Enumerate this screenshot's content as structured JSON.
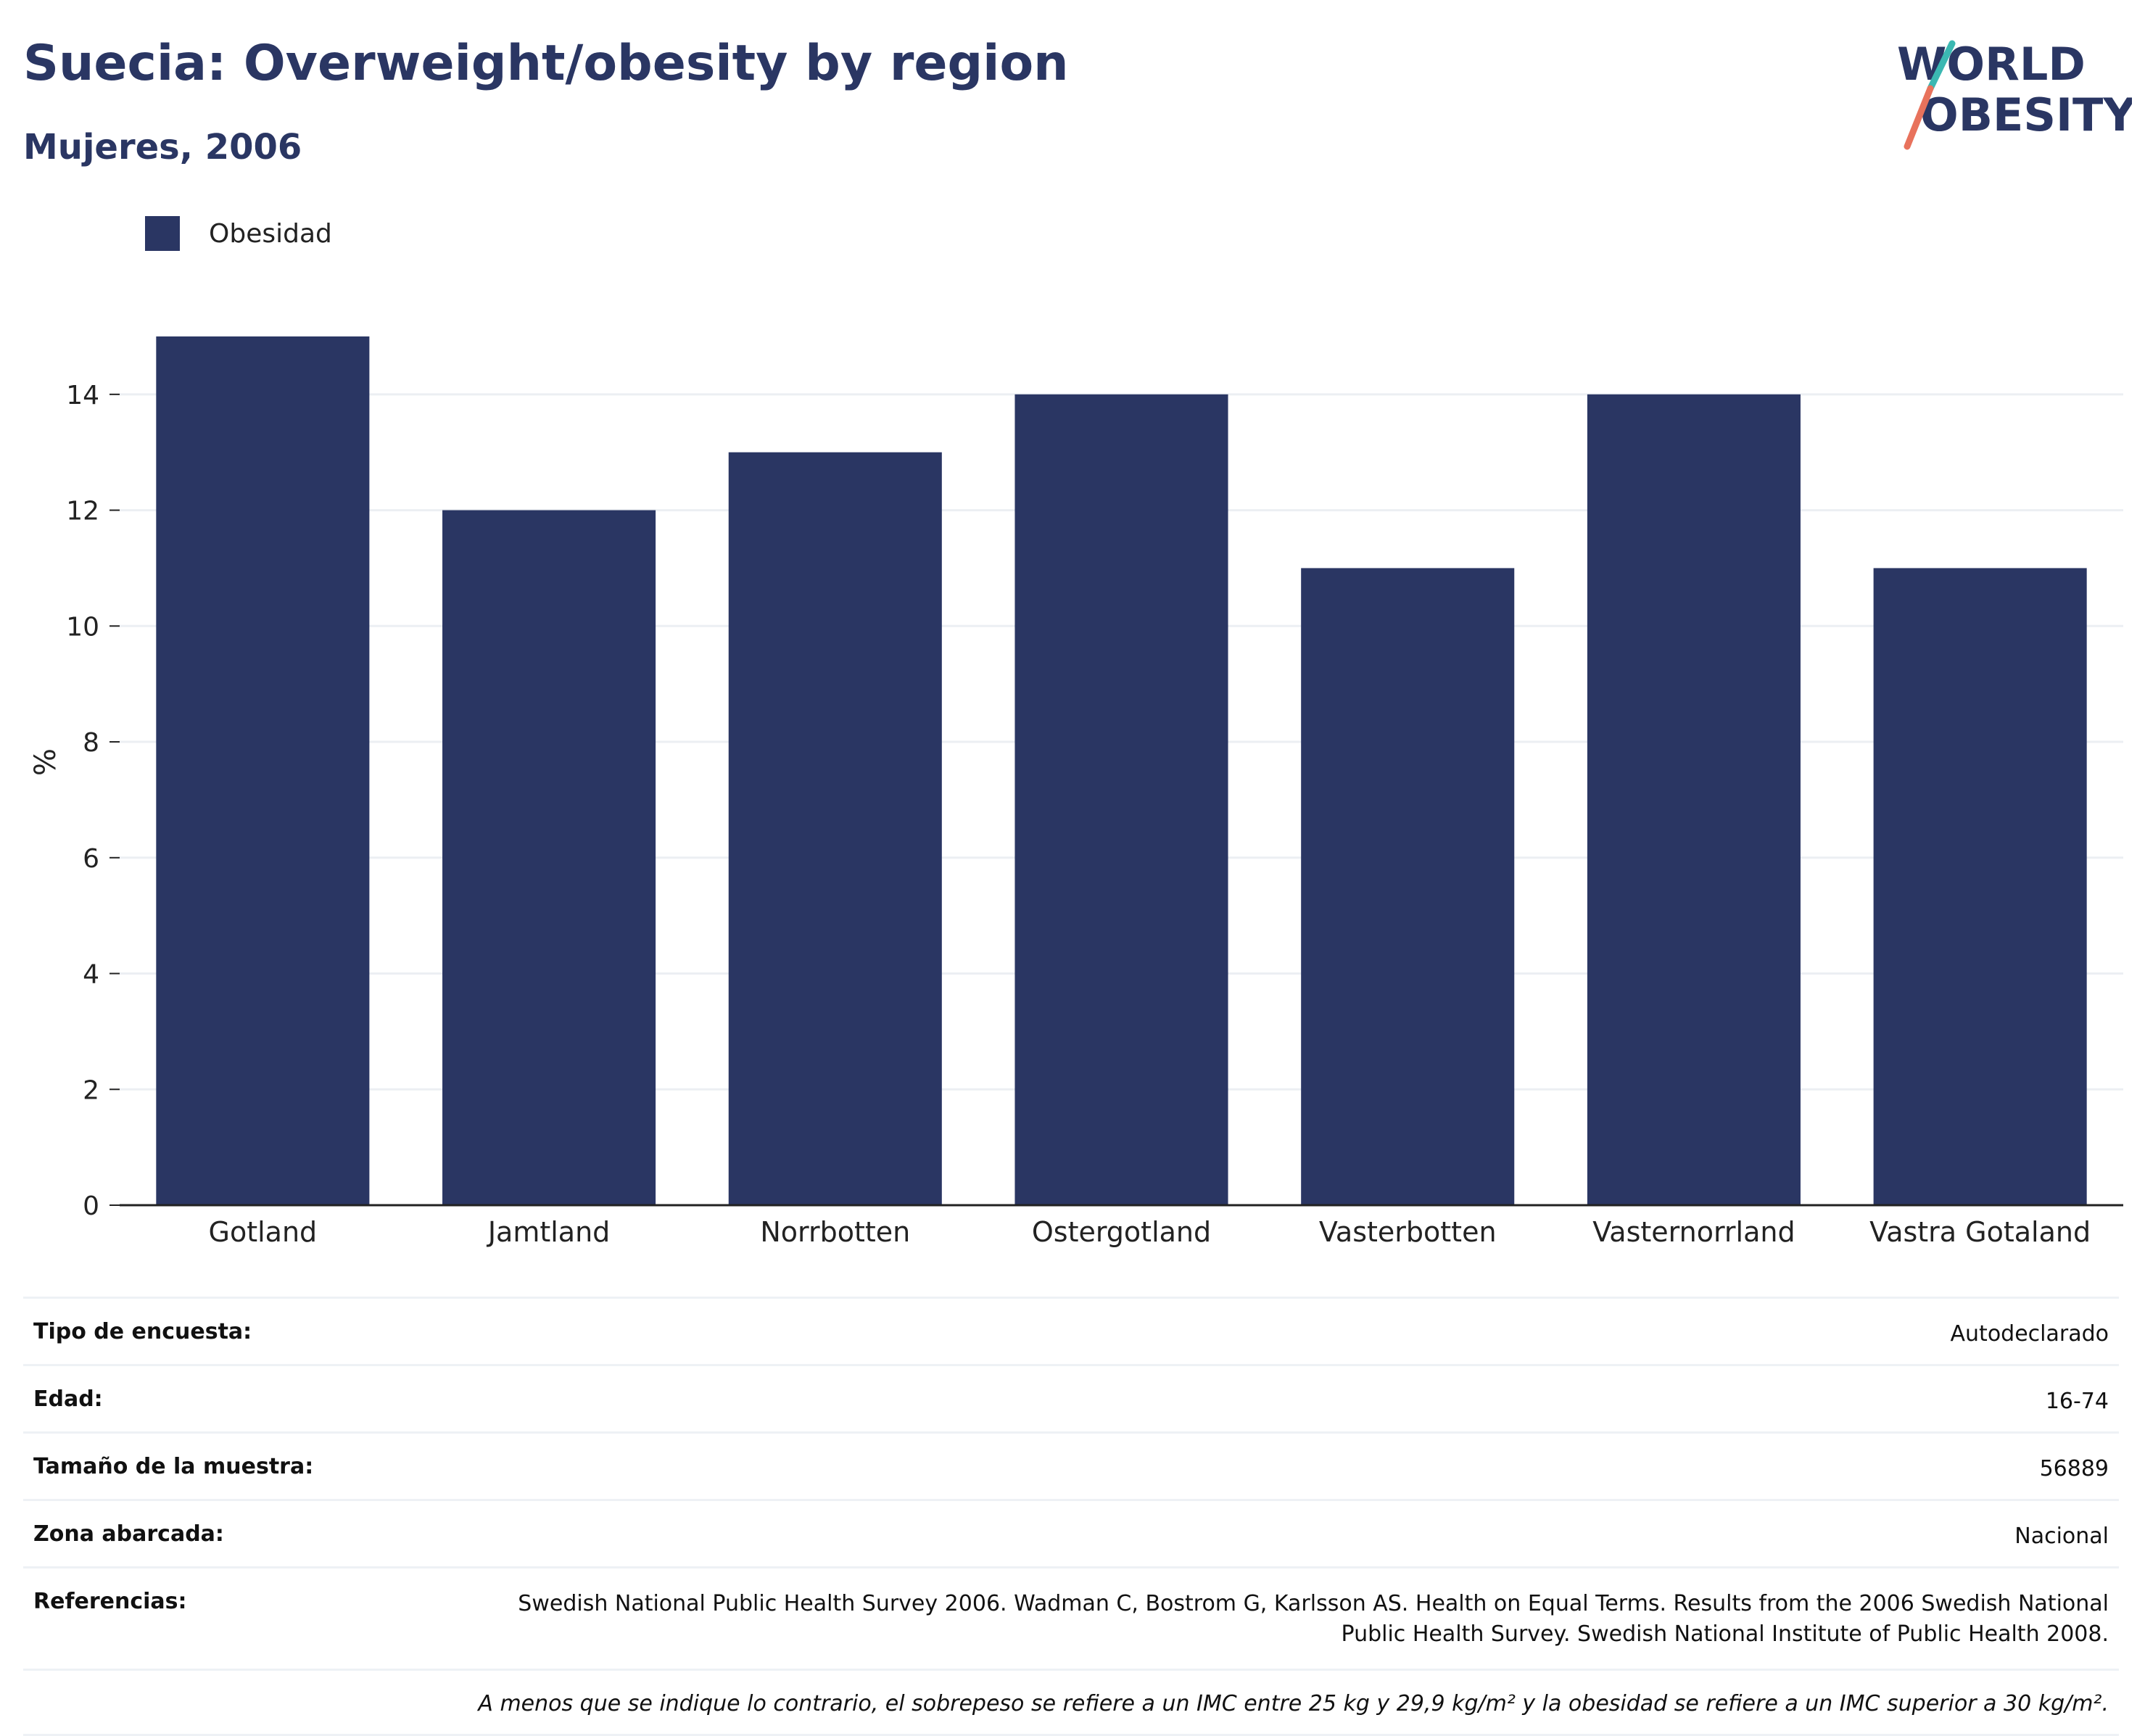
{
  "title": "Suecia: Overweight/obesity by region",
  "subtitle": "Mujeres, 2006",
  "logo": {
    "line1": "WORLD",
    "line2": "OBESITY",
    "colors": {
      "text": "#2a3663",
      "slash_top": "#3bb8b2",
      "slash_bottom": "#e8725c"
    }
  },
  "colors": {
    "bar": "#2a3663",
    "grid": "#eceff3",
    "axis": "#222222"
  },
  "chart_data": {
    "type": "bar",
    "categories": [
      "Gotland",
      "Jamtland",
      "Norrbotten",
      "Ostergotland",
      "Vasterbotten",
      "Vasternorrland",
      "Vastra Gotaland"
    ],
    "series": [
      {
        "name": "Obesidad",
        "values": [
          15,
          12,
          13,
          14,
          11,
          14,
          11
        ]
      }
    ],
    "ylabel": "%",
    "xlabel": "",
    "ylim": [
      0,
      15.3
    ],
    "yticks": [
      0,
      2,
      4,
      6,
      8,
      10,
      12,
      14
    ],
    "grid": true,
    "legend_position": "top-left"
  },
  "info": [
    {
      "key": "Tipo de encuesta:",
      "value": "Autodeclarado"
    },
    {
      "key": "Edad:",
      "value": "16-74"
    },
    {
      "key": "Tamaño de la muestra:",
      "value": "56889"
    },
    {
      "key": "Zona abarcada:",
      "value": "Nacional"
    },
    {
      "key": "Referencias:",
      "value": "Swedish National Public Health Survey 2006. Wadman C, Bostrom G, Karlsson AS. Health on Equal Terms. Results from the 2006 Swedish National Public Health Survey. Swedish National Institute of Public Health 2008."
    }
  ],
  "note": "A menos que se indique lo contrario, el sobrepeso se refiere a un IMC entre 25 kg y 29,9 kg/m² y la obesidad se refiere a un IMC superior a 30 kg/m²."
}
